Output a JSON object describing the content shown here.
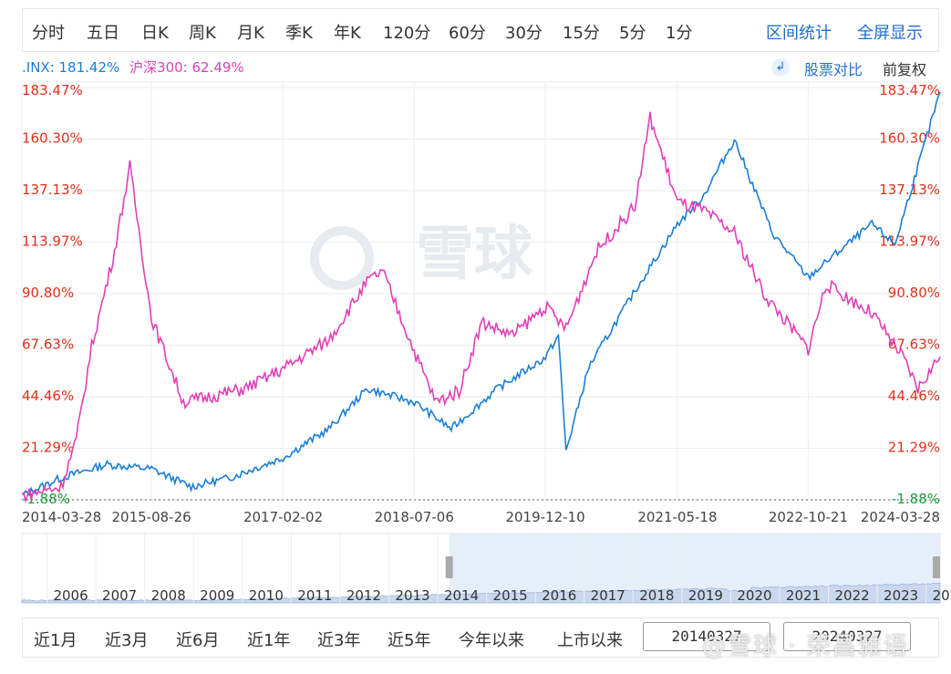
{
  "toolbar": {
    "periods": [
      "分时",
      "五日",
      "日K",
      "周K",
      "月K",
      "季K",
      "年K",
      "120分",
      "60分",
      "30分",
      "15分",
      "5分",
      "1分"
    ],
    "interval_stats": "区间统计",
    "fullscreen": "全屏显示"
  },
  "legend": {
    "series1": ".INX: 181.42%",
    "series2": "沪深300: 62.49%"
  },
  "controls": {
    "compare": "股票对比",
    "adjust": "前复权"
  },
  "watermark": "雪球",
  "footer_watermark": "@雪球 · 荣昌雅语",
  "range": {
    "buttons": [
      "近1月",
      "近3月",
      "近6月",
      "近1年",
      "近3年",
      "近5年",
      "今年以来",
      "上市以来"
    ],
    "start": "20140327",
    "end": "20240327"
  },
  "colors": {
    "inx": "#1a7fd6",
    "hs300": "#e23fb8",
    "axis_red": "#e0321c",
    "axis_green": "#1a9e3a",
    "navigator_fill": "#dde8f7"
  },
  "chart_data": {
    "type": "line",
    "y_ticks": [
      "183.47%",
      "160.30%",
      "137.13%",
      "113.97%",
      "90.80%",
      "67.63%",
      "44.46%",
      "21.29%",
      "-1.88%"
    ],
    "y_tick_values": [
      183.47,
      160.3,
      137.13,
      113.97,
      90.8,
      67.63,
      44.46,
      21.29,
      -1.88
    ],
    "ylim": [
      -1.88,
      183.47
    ],
    "x_ticks": [
      "2014-03-28",
      "2015-08-26",
      "2017-02-02",
      "2018-07-06",
      "2019-12-10",
      "2021-05-18",
      "2022-10-21",
      "2024-03-28"
    ],
    "series": [
      {
        "name": ".INX",
        "x": [
          "2014-03-28",
          "2014-09",
          "2015-03",
          "2015-08-26",
          "2016-02",
          "2016-07",
          "2017-02-02",
          "2017-08",
          "2018-01",
          "2018-07-06",
          "2018-12",
          "2019-06",
          "2019-12-10",
          "2020-02",
          "2020-03",
          "2020-06",
          "2020-12",
          "2021-05-18",
          "2021-09",
          "2022-01",
          "2022-06",
          "2022-10-21",
          "2023-02",
          "2023-07",
          "2023-10",
          "2024-01",
          "2024-03-28"
        ],
        "values": [
          0,
          8,
          14,
          12,
          4,
          8,
          17,
          30,
          48,
          42,
          30,
          48,
          62,
          72,
          20,
          58,
          92,
          122,
          135,
          160,
          118,
          98,
          108,
          122,
          113,
          148,
          181.42
        ]
      },
      {
        "name": "沪深300",
        "x": [
          "2014-03-28",
          "2014-09",
          "2014-11",
          "2015-01",
          "2015-04",
          "2015-06",
          "2015-08-26",
          "2016-01",
          "2016-05",
          "2016-09",
          "2017-02-02",
          "2017-08",
          "2018-01",
          "2018-03",
          "2018-07-06",
          "2018-10",
          "2019-01",
          "2019-04",
          "2019-08",
          "2019-12-10",
          "2020-03",
          "2020-07",
          "2020-12",
          "2021-02",
          "2021-05-18",
          "2021-09",
          "2022-01",
          "2022-05",
          "2022-10-21",
          "2023-01",
          "2023-07",
          "2023-11",
          "2024-01",
          "2024-03-28"
        ],
        "values": [
          0,
          4,
          25,
          67,
          110,
          148,
          80,
          42,
          45,
          48,
          57,
          70,
          96,
          101,
          65,
          42,
          47,
          78,
          72,
          85,
          75,
          110,
          130,
          170,
          132,
          128,
          118,
          90,
          66,
          95,
          82,
          62,
          48,
          62.49
        ]
      }
    ],
    "navigator": {
      "x_ticks": [
        "2006",
        "2007",
        "2008",
        "2009",
        "2010",
        "2011",
        "2012",
        "2013",
        "2014",
        "2015",
        "2016",
        "2017",
        "2018",
        "2019",
        "2020",
        "2021",
        "2022",
        "2023",
        "2024"
      ]
    }
  }
}
